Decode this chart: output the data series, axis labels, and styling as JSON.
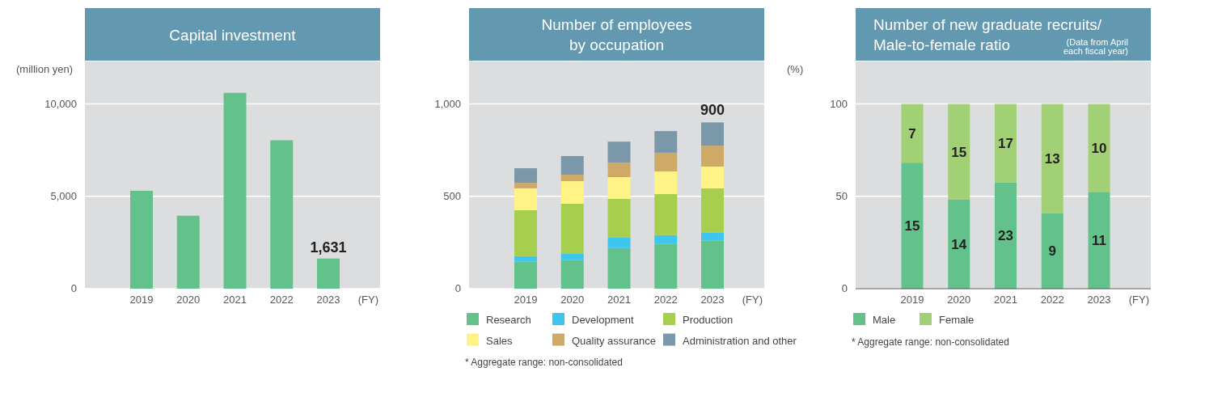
{
  "chart_data": [
    {
      "type": "bar",
      "title": "Capital investment",
      "ylabel": "(million yen)",
      "xlabel": "(FY)",
      "categories": [
        "2019",
        "2020",
        "2021",
        "2022",
        "2023"
      ],
      "values": [
        5300,
        3950,
        10600,
        8030,
        1631
      ],
      "color": "#63c28b",
      "value_labels": [
        null,
        null,
        null,
        null,
        "1,631"
      ],
      "ylim": [
        0,
        12300
      ],
      "yticks": [
        0,
        {
          "value": 5000,
          "label": "5,000"
        },
        {
          "value": 10000,
          "label": "10,000"
        }
      ],
      "grid": "y",
      "legend": false
    },
    {
      "type": "bar",
      "title": "Number of employees\nby occupation",
      "xlabel": "(FY)",
      "categories": [
        "2019",
        "2020",
        "2021",
        "2022",
        "2023"
      ],
      "stacked": true,
      "series": [
        {
          "name": "Research",
          "color": "#63c28b",
          "values": [
            146,
            154,
            220,
            242,
            261
          ]
        },
        {
          "name": "Development",
          "color": "#3ec6f0",
          "values": [
            30,
            37,
            58,
            48,
            42
          ]
        },
        {
          "name": "Production",
          "color": "#a6cf4e",
          "values": [
            249,
            269,
            208,
            222,
            240
          ]
        },
        {
          "name": "Sales",
          "color": "#fef384",
          "values": [
            118,
            122,
            118,
            123,
            118
          ]
        },
        {
          "name": "Quality assurance",
          "color": "#cfaa66",
          "values": [
            30,
            35,
            79,
            101,
            113
          ]
        },
        {
          "name": "Administration and other",
          "color": "#7b98aa",
          "values": [
            79,
            101,
            113,
            117,
            126
          ]
        }
      ],
      "totals": [
        null,
        null,
        null,
        null,
        "900"
      ],
      "ylim": [
        0,
        1230
      ],
      "yticks": [
        0,
        500,
        {
          "value": 1000,
          "label": "1,000"
        }
      ],
      "grid": "y",
      "legend": "bottom",
      "annotations": [
        "* Aggregate range: non-consolidated"
      ]
    },
    {
      "type": "bar",
      "title": "Number of new graduate recruits/\nMale-to-female ratio",
      "subtitle": "(Data from April\neach fiscal year)",
      "ylabel": "(%)",
      "xlabel": "(FY)",
      "categories": [
        "2019",
        "2020",
        "2021",
        "2022",
        "2023"
      ],
      "stacked": true,
      "series": [
        {
          "name": "Male",
          "color": "#63c28b",
          "values": [
            68.2,
            48.3,
            57.5,
            40.9,
            52.4
          ]
        },
        {
          "name": "Female",
          "color": "#a1d075",
          "values": [
            31.8,
            51.7,
            42.5,
            59.1,
            47.6
          ]
        }
      ],
      "ylim": [
        0,
        123
      ],
      "yticks": [
        0,
        50,
        100
      ],
      "grid": "y",
      "legend": "bottom",
      "annotations": [
        "* Aggregate range: non-consolidated",
        "15",
        "14",
        "23",
        "9",
        "11",
        "7",
        "15",
        "17",
        "13",
        "10"
      ]
    }
  ]
}
